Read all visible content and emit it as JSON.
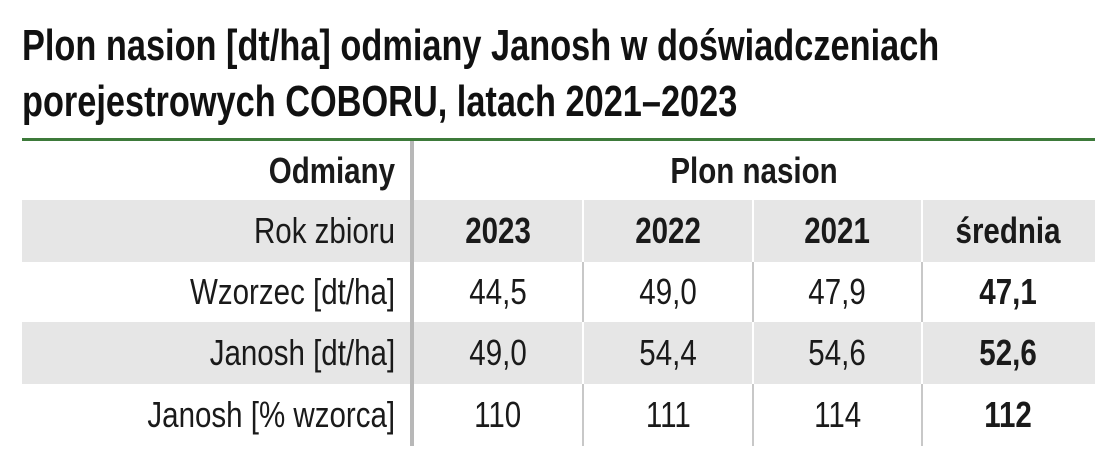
{
  "header": {
    "title_lines": [
      "Plon nasion [dt/ha] odmiany Janosh w doświadczeniach",
      "porejestrowych COBORU, latach 2021–2023"
    ]
  },
  "table": {
    "column_header": "Odmiany",
    "group_header": "Plon nasion",
    "row_label_header": "Rok zbioru",
    "columns": [
      "2023",
      "2022",
      "2021",
      "średnia"
    ],
    "rows": [
      {
        "label": "Wzorzec [dt/ha]",
        "values": [
          "44,5",
          "49,0",
          "47,9",
          "47,1"
        ]
      },
      {
        "label": "Janosh [dt/ha]",
        "values": [
          "49,0",
          "54,4",
          "54,6",
          "52,6"
        ]
      },
      {
        "label": "Janosh [% wzorca]",
        "values": [
          "110",
          "111",
          "114",
          "112"
        ]
      }
    ]
  }
}
